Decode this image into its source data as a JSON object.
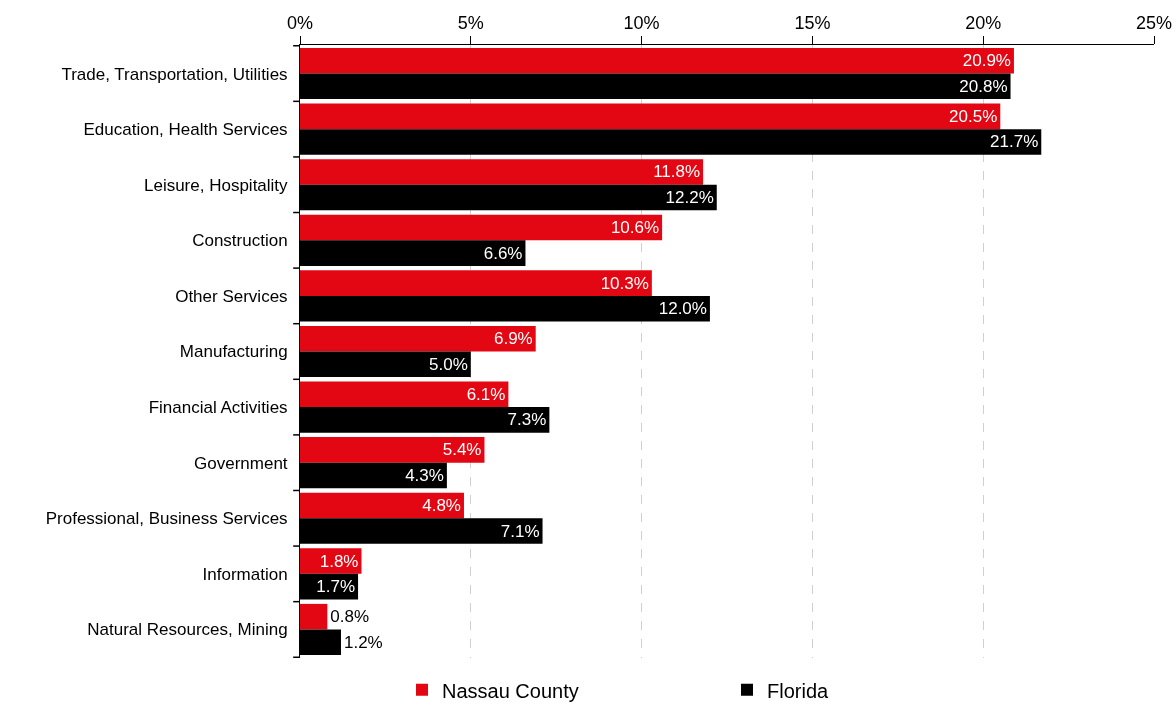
{
  "chart_data": {
    "type": "bar",
    "orientation": "horizontal",
    "categories": [
      "Trade, Transportation, Utilities",
      "Education, Health Services",
      "Leisure, Hospitality",
      "Construction",
      "Other Services",
      "Manufacturing",
      "Financial Activities",
      "Government",
      "Professional, Business Services",
      "Information",
      "Natural Resources, Mining"
    ],
    "series": [
      {
        "name": "Nassau County",
        "color": "#e30613",
        "values": [
          20.9,
          20.5,
          11.8,
          10.6,
          10.3,
          6.9,
          6.1,
          5.4,
          4.8,
          1.8,
          0.8
        ],
        "value_labels": [
          "20.9%",
          "20.5%",
          "11.8%",
          "10.6%",
          "10.3%",
          "6.9%",
          "6.1%",
          "5.4%",
          "4.8%",
          "1.8%",
          "0.8%"
        ]
      },
      {
        "name": "Florida",
        "color": "#000000",
        "values": [
          20.8,
          21.7,
          12.2,
          6.6,
          12.0,
          5.0,
          7.3,
          4.3,
          7.1,
          1.7,
          1.2
        ],
        "value_labels": [
          "20.8%",
          "21.7%",
          "12.2%",
          "6.6%",
          "12.0%",
          "5.0%",
          "7.3%",
          "4.3%",
          "7.1%",
          "1.7%",
          "1.2%"
        ]
      }
    ],
    "xlim": [
      0,
      25
    ],
    "xticks": [
      {
        "value": 0,
        "label": "0%"
      },
      {
        "value": 5,
        "label": "5%"
      },
      {
        "value": 10,
        "label": "10%"
      },
      {
        "value": 15,
        "label": "15%"
      },
      {
        "value": 20,
        "label": "20%"
      },
      {
        "value": 25,
        "label": "25%"
      }
    ],
    "grid": "x",
    "legend": "bottom"
  }
}
